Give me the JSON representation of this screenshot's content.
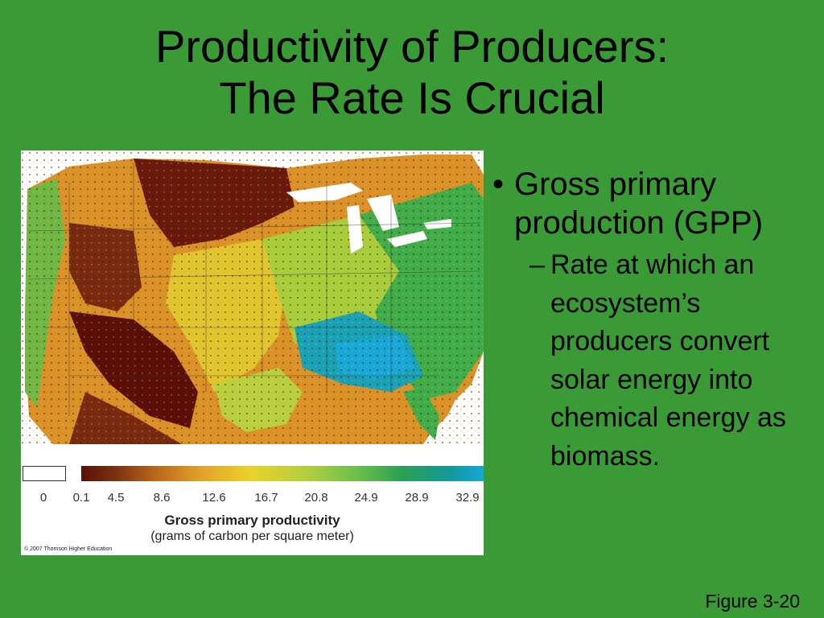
{
  "slide": {
    "title_line1": "Productivity of Producers:",
    "title_line2": "The Rate Is Crucial",
    "bullet": "Gross primary production (GPP)",
    "sub_bullet": "Rate at which an ecosystem’s producers convert solar energy into chemical energy as biomass.",
    "figure_label": "Figure 3-20"
  },
  "figure": {
    "legend_ticks": [
      "0",
      "0.1",
      "4.5",
      "8.6",
      "12.6",
      "16.7",
      "20.8",
      "24.9",
      "28.9",
      "32.9"
    ],
    "legend_title": "Gross primary productivity",
    "legend_subtitle": "(grams of carbon per square meter)",
    "copyright": "© 2007 Thomson Higher Education",
    "colors": {
      "background": "#3a9a35",
      "low_productivity": "#5a1008",
      "mid_productivity": "#ead22a",
      "high_productivity": "#16a8d8",
      "water": "#ffffff"
    }
  }
}
